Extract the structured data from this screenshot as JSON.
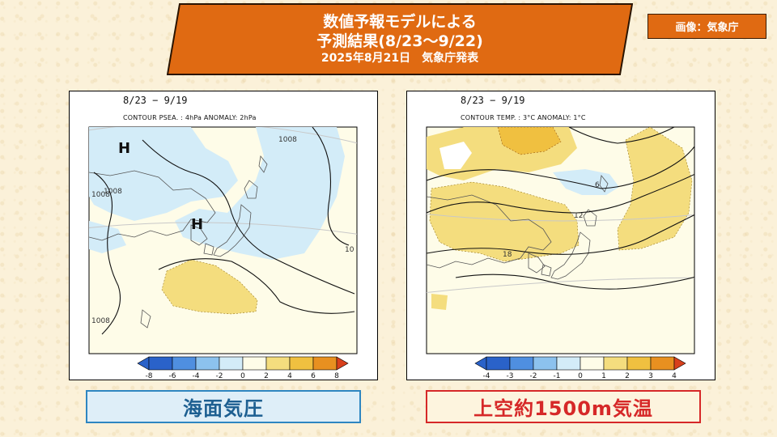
{
  "header": {
    "line1": "数値予報モデルによる",
    "line2": "予測結果(8/23～9/22)",
    "line3": "2025年8月21日　気象庁発表",
    "background_color": "#e06a12"
  },
  "credit": "画像：気象庁",
  "maps": [
    {
      "period": "8/23 − 9/19",
      "contour_info": "CONTOUR PSEA. :  4hPa    ANOMALY:  2hPa",
      "high_labels": [
        "H",
        "H"
      ],
      "contour_labels": [
        "1008",
        "1008",
        "1008",
        "1008",
        "10"
      ],
      "colorbar_ticks": [
        "-8",
        "-6",
        "-4",
        "-2",
        "0",
        "2",
        "4",
        "6",
        "8"
      ],
      "caption": "海面気圧"
    },
    {
      "period": "8/23 − 9/19",
      "contour_info": "CONTOUR TEMP. :  3°C    ANOMALY:  1°C",
      "contour_labels": [
        "6",
        "12",
        "18"
      ],
      "colorbar_ticks": [
        "-4",
        "-3",
        "-2",
        "-1",
        "0",
        "1",
        "2",
        "3",
        "4"
      ],
      "caption": "上空約1500m気温"
    }
  ],
  "colors": {
    "negative_anomaly": [
      "#2a62c9",
      "#4f8fe0",
      "#8cc2ee",
      "#d3ecf8"
    ],
    "neutral": "#fefce8",
    "positive_anomaly": [
      "#f4dd7e",
      "#f0c040",
      "#e89020",
      "#d8401c"
    ],
    "caption_left_text": "#1d5f91",
    "caption_right_text": "#d62828"
  }
}
